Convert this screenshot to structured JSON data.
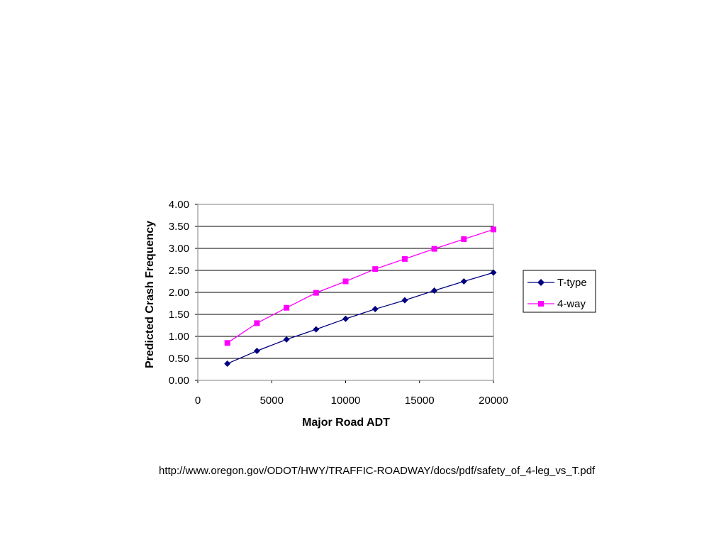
{
  "chart_data": {
    "type": "line",
    "xlabel": "Major Road ADT",
    "ylabel": "Predicted Crash Frequency",
    "xlim": [
      0,
      20000
    ],
    "ylim": [
      0,
      4
    ],
    "xticks": [
      "0",
      "5000",
      "10000",
      "15000",
      "20000"
    ],
    "yticks": [
      "0.00",
      "0.50",
      "1.00",
      "1.50",
      "2.00",
      "2.50",
      "3.00",
      "3.50",
      "4.00"
    ],
    "grid": "horizontal",
    "legend_position": "right",
    "series": [
      {
        "name": "T-type",
        "color": "#000080",
        "marker": "diamond",
        "x": [
          2000,
          4000,
          6000,
          8000,
          10000,
          12000,
          14000,
          16000,
          18000,
          20000
        ],
        "y": [
          0.38,
          0.67,
          0.93,
          1.16,
          1.4,
          1.62,
          1.82,
          2.04,
          2.25,
          2.45
        ]
      },
      {
        "name": "4-way",
        "color": "#ff00ff",
        "marker": "square",
        "x": [
          2000,
          4000,
          6000,
          8000,
          10000,
          12000,
          14000,
          16000,
          18000,
          20000
        ],
        "y": [
          0.85,
          1.3,
          1.65,
          1.99,
          2.25,
          2.53,
          2.76,
          2.99,
          3.21,
          3.43
        ]
      }
    ]
  },
  "source_caption": "http://www.oregon.gov/ODOT/HWY/TRAFFIC-ROADWAY/docs/pdf/safety_of_4-leg_vs_T.pdf"
}
